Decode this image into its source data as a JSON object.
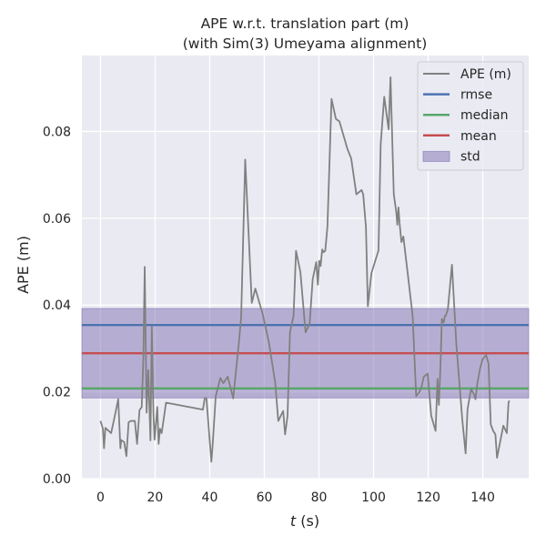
{
  "chart_data": {
    "type": "line",
    "title": "APE w.r.t. translation part (m)",
    "subtitle": "(with Sim(3) Umeyama alignment)",
    "xlabel_var": "t",
    "xlabel_unit": " (s)",
    "ylabel": "APE (m)",
    "xlim": [
      -6.8,
      156.8
    ],
    "ylim": [
      0.0,
      0.0975
    ],
    "x_ticks": [
      0,
      20,
      40,
      60,
      80,
      100,
      120,
      140
    ],
    "y_ticks": [
      0.0,
      0.02,
      0.04,
      0.06,
      0.08
    ],
    "y_tick_labels": [
      "0.00",
      "0.02",
      "0.04",
      "0.06",
      "0.08"
    ],
    "grid": true,
    "legend_position": "top-right",
    "colors": {
      "background": "#eaeaf2",
      "grid": "#ffffff",
      "ape": "#808080",
      "rmse": "#4c72b0",
      "median": "#55a868",
      "mean": "#c44e52",
      "std_fill": "#8172b2",
      "std_edge": "#8172b2"
    },
    "stats": {
      "rmse": 0.0354,
      "median": 0.0208,
      "mean": 0.0289,
      "std_low": 0.0186,
      "std_high": 0.0392
    },
    "legend": [
      {
        "label": "APE (m)",
        "key": "ape",
        "kind": "line"
      },
      {
        "label": "rmse",
        "key": "rmse",
        "kind": "line"
      },
      {
        "label": "median",
        "key": "median",
        "kind": "line"
      },
      {
        "label": "mean",
        "key": "mean",
        "kind": "line"
      },
      {
        "label": "std",
        "key": "std_fill",
        "kind": "patch"
      }
    ],
    "series": [
      {
        "name": "APE (m)",
        "x": [
          0.0,
          0.9,
          1.3,
          1.8,
          3.9,
          5.1,
          6.5,
          7.3,
          7.6,
          8.7,
          9.5,
          10.3,
          11.1,
          12.6,
          13.4,
          14.3,
          15.1,
          15.7,
          16.2,
          16.9,
          17.5,
          18.3,
          18.8,
          19.4,
          19.8,
          20.8,
          21.3,
          21.8,
          22.4,
          23.1,
          24.0,
          37.5,
          38.2,
          38.8,
          40.6,
          41.1,
          42.2,
          43.9,
          45.0,
          46.6,
          48.6,
          50.7,
          51.5,
          53.0,
          55.4,
          56.7,
          59.4,
          61.7,
          64.0,
          65.1,
          66.9,
          67.6,
          68.5,
          69.4,
          70.7,
          71.6,
          73.2,
          75.1,
          76.6,
          77.7,
          79.0,
          79.6,
          80.1,
          80.6,
          81.2,
          81.7,
          82.3,
          83.1,
          84.6,
          86.2,
          87.5,
          90.4,
          91.8,
          93.7,
          95.6,
          96.2,
          97.2,
          97.9,
          99.2,
          101.8,
          102.6,
          103.9,
          105.5,
          106.2,
          107.4,
          108.3,
          108.7,
          109.1,
          109.5,
          110.2,
          110.9,
          112.4,
          114.3,
          115.6,
          116.8,
          117.5,
          118.4,
          119.8,
          121.1,
          122.7,
          123.4,
          123.9,
          124.5,
          125.0,
          125.7,
          126.1,
          126.4,
          127.2,
          128.7,
          130.3,
          132.5,
          133.7,
          134.4,
          135.7,
          136.7,
          137.3,
          138.0,
          139.0,
          139.9,
          141.2,
          142.1,
          142.9,
          143.8,
          144.6,
          145.2,
          147.5,
          148.8,
          149.4,
          149.7
        ],
        "values": [
          0.0133,
          0.0115,
          0.007,
          0.0117,
          0.0105,
          0.014,
          0.0183,
          0.007,
          0.0089,
          0.0084,
          0.0052,
          0.013,
          0.0133,
          0.0133,
          0.008,
          0.0158,
          0.0165,
          0.0275,
          0.0488,
          0.0152,
          0.025,
          0.0088,
          0.035,
          0.015,
          0.009,
          0.0165,
          0.008,
          0.0115,
          0.0105,
          0.0135,
          0.0175,
          0.0159,
          0.0186,
          0.0185,
          0.0039,
          0.008,
          0.019,
          0.0232,
          0.022,
          0.0235,
          0.0185,
          0.0315,
          0.037,
          0.0735,
          0.0405,
          0.0438,
          0.0379,
          0.0313,
          0.022,
          0.0133,
          0.0156,
          0.0102,
          0.0145,
          0.0338,
          0.0375,
          0.0525,
          0.0476,
          0.0337,
          0.0357,
          0.0459,
          0.0499,
          0.0447,
          0.0502,
          0.049,
          0.0528,
          0.0522,
          0.0525,
          0.058,
          0.0875,
          0.0829,
          0.0823,
          0.076,
          0.0738,
          0.0655,
          0.0665,
          0.0655,
          0.058,
          0.0397,
          0.0473,
          0.0526,
          0.077,
          0.088,
          0.0805,
          0.0925,
          0.0655,
          0.0615,
          0.0585,
          0.0625,
          0.059,
          0.0545,
          0.0558,
          0.0478,
          0.0375,
          0.019,
          0.02,
          0.021,
          0.0235,
          0.0242,
          0.0145,
          0.011,
          0.023,
          0.017,
          0.026,
          0.0368,
          0.036,
          0.0375,
          0.0375,
          0.039,
          0.0493,
          0.031,
          0.0135,
          0.0058,
          0.016,
          0.0207,
          0.0195,
          0.0183,
          0.022,
          0.0254,
          0.0275,
          0.0285,
          0.0265,
          0.0125,
          0.011,
          0.0102,
          0.0048,
          0.0122,
          0.0105,
          0.0175,
          0.018
        ]
      }
    ]
  }
}
